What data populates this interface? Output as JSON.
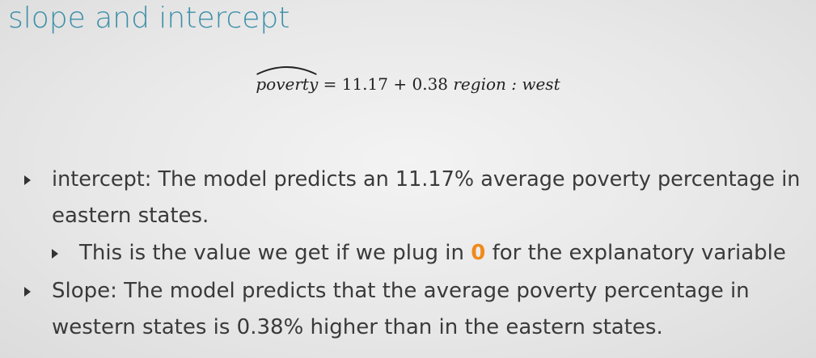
{
  "slide": {
    "title": "slope and intercept"
  },
  "equation": {
    "lhs": "poverty",
    "equals": "=",
    "intercept": "11.17",
    "plus": "+",
    "slope": "0.38",
    "variable": "region : west"
  },
  "bullets": [
    {
      "line1": "intercept: The model predicts an 11.17% average poverty percentage in",
      "line2": "eastern states."
    },
    {
      "prefix": "This is the value we get if we plug in ",
      "highlight": "0",
      "suffix": " for the explanatory variable"
    },
    {
      "line1": "Slope: The model predicts that the average poverty percentage in",
      "line2": "western states is 0.38% higher than in the eastern states."
    }
  ],
  "colors": {
    "title": "#3d8fa8",
    "highlight": "#f08a1c"
  }
}
